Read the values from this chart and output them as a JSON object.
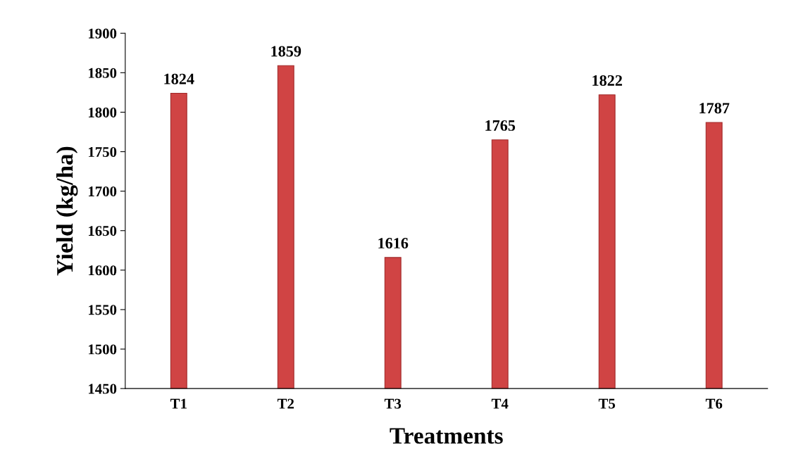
{
  "chart_data": {
    "type": "bar",
    "xlabel": "Treatments",
    "ylabel": "Yield (kg/ha)",
    "categories": [
      "T1",
      "T2",
      "T3",
      "T4",
      "T5",
      "T6"
    ],
    "values": [
      1824,
      1859,
      1616,
      1765,
      1822,
      1787
    ],
    "color": "#d04444",
    "data_labels": true,
    "ylim": [
      1450,
      1900
    ],
    "yticks": [
      1450,
      1500,
      1550,
      1600,
      1650,
      1700,
      1750,
      1800,
      1850,
      1900
    ],
    "grid": false,
    "legend": false
  }
}
